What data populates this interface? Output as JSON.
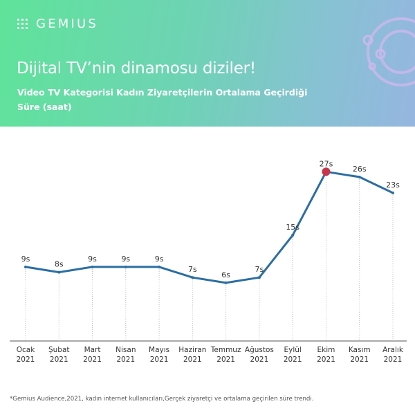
{
  "header": {
    "logo_text": "GEMIUS",
    "title": "Dijital TV’nin dinamosu diziler!",
    "subtitle": "Video TV Kategorisi Kadın Ziyaretçilerin Ortalama Geçirdiği Süre (saat)"
  },
  "colors": {
    "line": "#2b6ea3",
    "highlight": "#c8354a",
    "axis": "#555555",
    "text": "#333333"
  },
  "chart_data": {
    "type": "line",
    "categories": [
      [
        "Ocak",
        "2021"
      ],
      [
        "Şubat",
        "2021"
      ],
      [
        "Mart",
        "2021"
      ],
      [
        "Nisan",
        "2021"
      ],
      [
        "Mayıs",
        "2021"
      ],
      [
        "Haziran",
        "2021"
      ],
      [
        "Temmuz",
        "2021"
      ],
      [
        "Ağustos",
        "2021"
      ],
      [
        "Eylül",
        "2021"
      ],
      [
        "Ekim",
        "2021"
      ],
      [
        "Kasım",
        "2021"
      ],
      [
        "Aralık",
        "2021"
      ]
    ],
    "values": [
      9,
      8,
      9,
      9,
      9,
      7,
      6,
      7,
      15,
      27,
      26,
      23
    ],
    "labels": [
      "9s",
      "8s",
      "9s",
      "9s",
      "9s",
      "7s",
      "6s",
      "7s",
      "15s",
      "27s",
      "26s",
      "23s"
    ],
    "highlight_index": 9,
    "ylim": [
      -5,
      29
    ],
    "grid": false
  },
  "footnote": "*Gemius Audience,2021, kadın internet kullanıcıları,Gerçek ziyaretçi ve ortalama geçirilen süre trendi."
}
